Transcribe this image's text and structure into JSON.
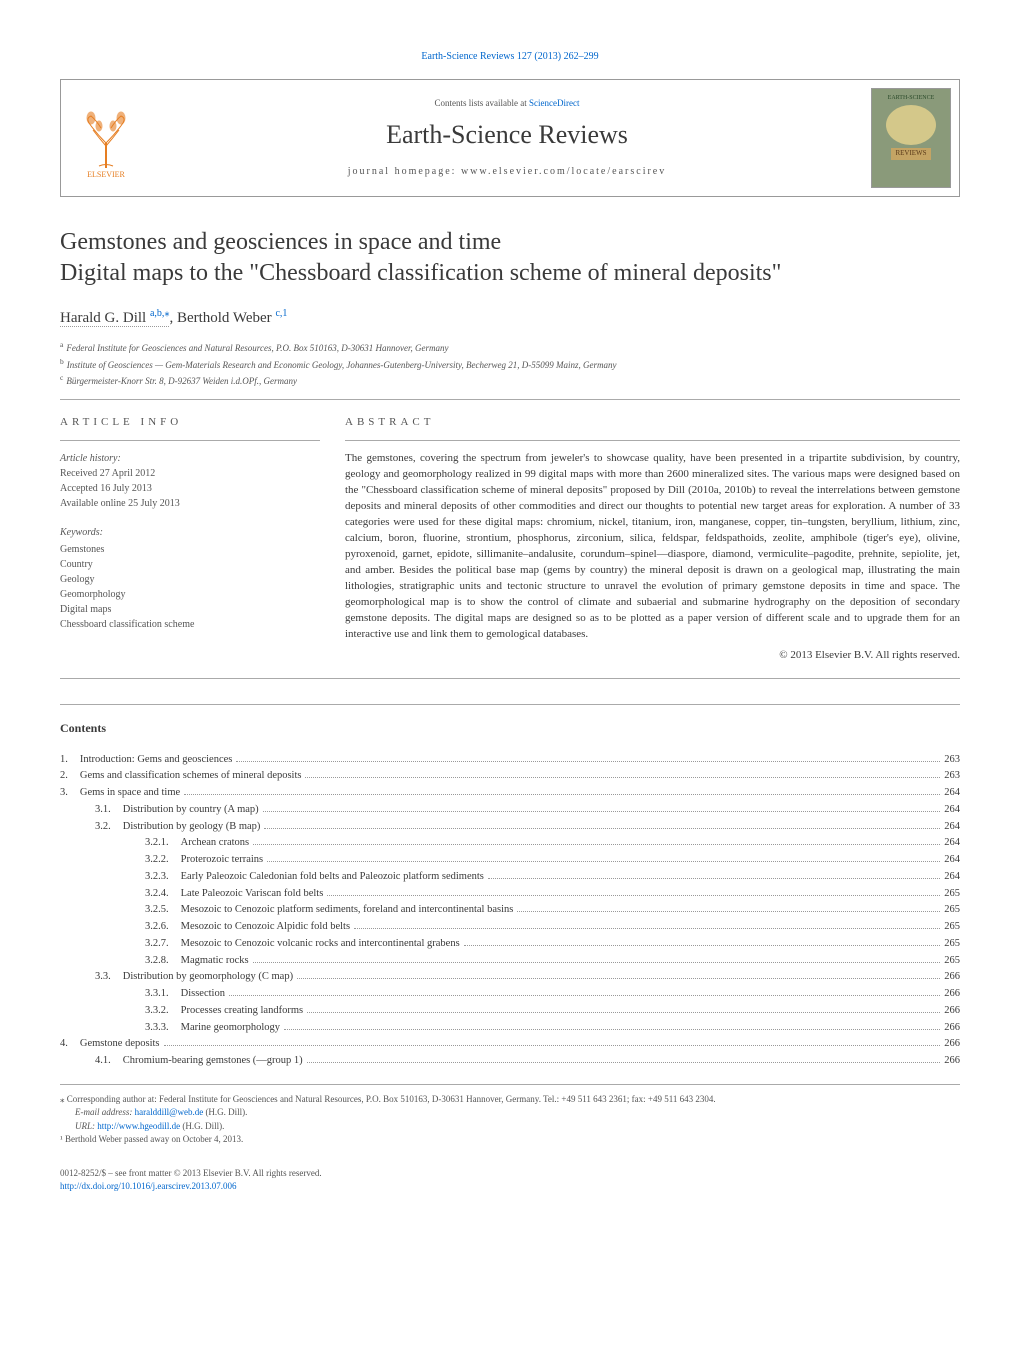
{
  "top_link": {
    "prefix": "",
    "text": "Earth-Science Reviews 127 (2013) 262–299"
  },
  "header": {
    "contents_prefix": "Contents lists available at ",
    "contents_link": "ScienceDirect",
    "journal_name": "Earth-Science Reviews",
    "homepage_text": "journal homepage: www.elsevier.com/locate/earscirev",
    "cover_label": "EARTH-SCIENCE",
    "cover_reviews": "REVIEWS",
    "publisher": "ELSEVIER"
  },
  "article": {
    "title_line1": "Gemstones and geosciences in space and time",
    "title_line2": "Digital maps to the \"Chessboard classification scheme of mineral deposits\"",
    "authors_html": "Harald G. Dill",
    "author1_sup": "a,b,",
    "author1_star": "⁎",
    "author2": ", Berthold Weber ",
    "author2_sup": "c,1",
    "affiliations": [
      {
        "sup": "a",
        "text": "Federal Institute for Geosciences and Natural Resources, P.O. Box 510163, D-30631 Hannover, Germany"
      },
      {
        "sup": "b",
        "text": "Institute of Geosciences — Gem-Materials Research and Economic Geology, Johannes-Gutenberg-University, Becherweg 21, D-55099 Mainz, Germany"
      },
      {
        "sup": "c",
        "text": "Bürgermeister-Knorr Str. 8, D-92637 Weiden i.d.OPf., Germany"
      }
    ]
  },
  "info": {
    "heading": "article info",
    "history_label": "Article history:",
    "received": "Received 27 April 2012",
    "accepted": "Accepted 16 July 2013",
    "online": "Available online 25 July 2013",
    "keywords_label": "Keywords:",
    "keywords": [
      "Gemstones",
      "Country",
      "Geology",
      "Geomorphology",
      "Digital maps",
      "Chessboard classification scheme"
    ]
  },
  "abstract": {
    "heading": "abstract",
    "text": "The gemstones, covering the spectrum from jeweler's to showcase quality, have been presented in a tripartite subdivision, by country, geology and geomorphology realized in 99 digital maps with more than 2600 mineralized sites. The various maps were designed based on the \"Chessboard classification scheme of mineral deposits\" proposed by Dill (2010a, 2010b) to reveal the interrelations between gemstone deposits and mineral deposits of other commodities and direct our thoughts to potential new target areas for exploration. A number of 33 categories were used for these digital maps: chromium, nickel, titanium, iron, manganese, copper, tin–tungsten, beryllium, lithium, zinc, calcium, boron, fluorine, strontium, phosphorus, zirconium, silica, feldspar, feldspathoids, zeolite, amphibole (tiger's eye), olivine, pyroxenoid, garnet, epidote, sillimanite–andalusite, corundum–spinel—diaspore, diamond, vermiculite–pagodite, prehnite, sepiolite, jet, and amber. Besides the political base map (gems by country) the mineral deposit is drawn on a geological map, illustrating the main lithologies, stratigraphic units and tectonic structure to unravel the evolution of primary gemstone deposits in time and space. The geomorphological map is to show the control of climate and subaerial and submarine hydrography on the deposition of secondary gemstone deposits. The digital maps are designed so as to be plotted as a paper version of different scale and to upgrade them for an interactive use and link them to gemological databases.",
    "copyright": "© 2013 Elsevier B.V. All rights reserved."
  },
  "contents": {
    "heading": "Contents",
    "items": [
      {
        "num": "1.",
        "indent": 0,
        "title": "Introduction: Gems and geosciences",
        "page": "263"
      },
      {
        "num": "2.",
        "indent": 0,
        "title": "Gems and classification schemes of mineral deposits",
        "page": "263"
      },
      {
        "num": "3.",
        "indent": 0,
        "title": "Gems in space and time",
        "page": "264"
      },
      {
        "num": "3.1.",
        "indent": 1,
        "title": "Distribution by country (A map)",
        "page": "264"
      },
      {
        "num": "3.2.",
        "indent": 1,
        "title": "Distribution by geology (B map)",
        "page": "264"
      },
      {
        "num": "3.2.1.",
        "indent": 2,
        "title": "Archean cratons",
        "page": "264"
      },
      {
        "num": "3.2.2.",
        "indent": 2,
        "title": "Proterozoic terrains",
        "page": "264"
      },
      {
        "num": "3.2.3.",
        "indent": 2,
        "title": "Early Paleozoic Caledonian fold belts and Paleozoic platform sediments",
        "page": "264"
      },
      {
        "num": "3.2.4.",
        "indent": 2,
        "title": "Late Paleozoic Variscan fold belts",
        "page": "265"
      },
      {
        "num": "3.2.5.",
        "indent": 2,
        "title": "Mesozoic to Cenozoic platform sediments, foreland and intercontinental basins",
        "page": "265"
      },
      {
        "num": "3.2.6.",
        "indent": 2,
        "title": "Mesozoic to Cenozoic Alpidic fold belts",
        "page": "265"
      },
      {
        "num": "3.2.7.",
        "indent": 2,
        "title": "Mesozoic to Cenozoic volcanic rocks and intercontinental grabens",
        "page": "265"
      },
      {
        "num": "3.2.8.",
        "indent": 2,
        "title": "Magmatic rocks",
        "page": "265"
      },
      {
        "num": "3.3.",
        "indent": 1,
        "title": "Distribution by geomorphology (C map)",
        "page": "266"
      },
      {
        "num": "3.3.1.",
        "indent": 2,
        "title": "Dissection",
        "page": "266"
      },
      {
        "num": "3.3.2.",
        "indent": 2,
        "title": "Processes creating landforms",
        "page": "266"
      },
      {
        "num": "3.3.3.",
        "indent": 2,
        "title": "Marine geomorphology",
        "page": "266"
      },
      {
        "num": "4.",
        "indent": 0,
        "title": "Gemstone deposits",
        "page": "266"
      },
      {
        "num": "4.1.",
        "indent": 1,
        "title": "Chromium-bearing gemstones (—group 1)",
        "page": "266"
      }
    ]
  },
  "footnotes": {
    "corresponding": "⁎ Corresponding author at: Federal Institute for Geosciences and Natural Resources, P.O. Box 510163, D-30631 Hannover, Germany. Tel.: +49 511 643 2361; fax: +49 511 643 2304.",
    "email_label": "E-mail address: ",
    "email": "haralddill@web.de",
    "email_suffix": " (H.G. Dill).",
    "url_label": "URL: ",
    "url": "http://www.hgeodill.de",
    "url_suffix": " (H.G. Dill).",
    "note1": "¹ Berthold Weber passed away on October 4, 2013."
  },
  "bottom": {
    "line1": "0012-8252/$ – see front matter © 2013 Elsevier B.V. All rights reserved.",
    "doi": "http://dx.doi.org/10.1016/j.earscirev.2013.07.006"
  },
  "styling": {
    "link_color": "#0066cc",
    "text_color": "#3a3a3a",
    "muted_color": "#555555",
    "border_color": "#aaaaaa",
    "background": "#ffffff",
    "body_width": 1020,
    "body_padding": 60,
    "title_fontsize": 24,
    "journal_fontsize": 26,
    "body_fontsize": 12,
    "small_fontsize": 10,
    "tiny_fontsize": 9
  }
}
